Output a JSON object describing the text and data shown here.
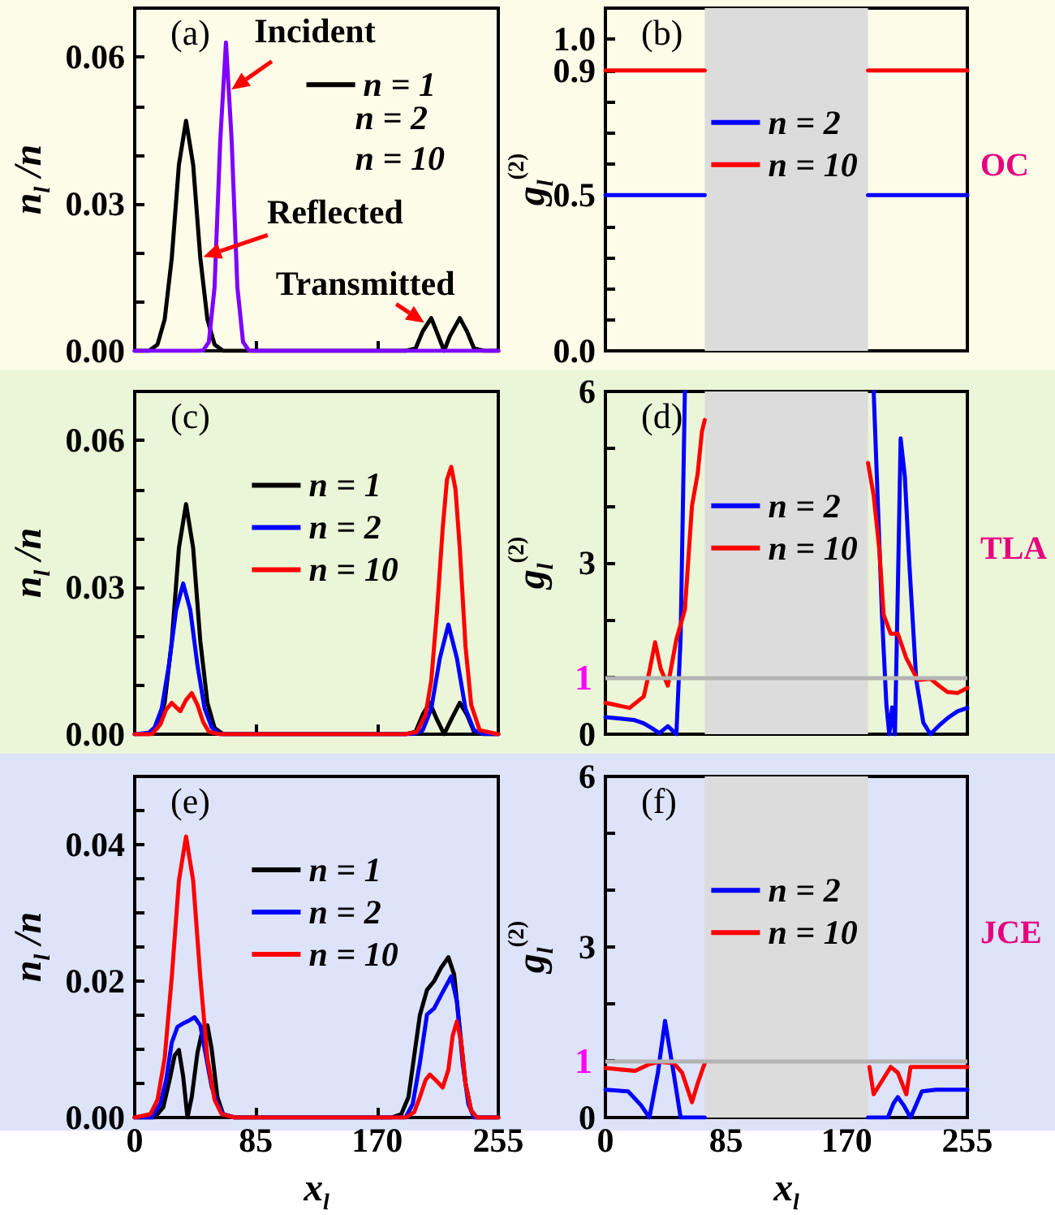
{
  "chart_data": [
    {
      "type": "line",
      "ylabel": "n$_{l}$ /n",
      "xlim": [
        0,
        255
      ],
      "xticks": [
        0,
        85,
        170,
        255
      ],
      "ylim": [
        0,
        0.07
      ],
      "yticks": [
        {
          "value": 0,
          "label": "0.00"
        },
        {
          "value": 0.01,
          "label": null
        },
        {
          "value": 0.02,
          "label": null
        },
        {
          "value": 0.03,
          "label": "0.03"
        },
        {
          "value": 0.04,
          "label": null
        },
        {
          "value": 0.05,
          "label": null
        },
        {
          "value": 0.06,
          "label": "0.06"
        }
      ],
      "tick_labels": "y",
      "legend": "top right",
      "series": [
        {
          "name": "n = 1",
          "color": "#000000",
          "x": [
            0,
            10,
            16,
            21,
            26,
            31,
            36,
            41,
            46,
            51,
            56,
            62,
            100,
            150,
            190,
            197,
            202,
            208,
            213,
            217,
            221,
            228,
            233,
            238,
            245,
            255
          ],
          "values": [
            0,
            0,
            0.0013,
            0.0064,
            0.019,
            0.038,
            0.047,
            0.038,
            0.019,
            0.0064,
            0.0013,
            0,
            0,
            0,
            0,
            0.0005,
            0.004,
            0.0067,
            0.003,
            0,
            0.003,
            0.0067,
            0.004,
            0.0005,
            0,
            0
          ]
        },
        {
          "color": "#7f00ff",
          "x": [
            0,
            44,
            48,
            52,
            56,
            60,
            64,
            68,
            72,
            76,
            80,
            84,
            255
          ],
          "values": [
            0,
            0,
            0.0001,
            0.0018,
            0.013,
            0.043,
            0.063,
            0.043,
            0.013,
            0.0018,
            0.0001,
            0,
            0
          ]
        }
      ],
      "annotations": [
        "(a)",
        {
          "text": "Incident",
          "x": 66,
          "y": 0.053
        },
        {
          "text": "Reflected",
          "x": 46,
          "y": 0.019
        },
        {
          "text": "Transmitted",
          "x": 205,
          "y": 0.0054
        },
        "n = 2",
        "n = 10"
      ]
    },
    {
      "type": "line",
      "ylabel": "g$_{l}$$^{(2)}$",
      "xlim": [
        0,
        255
      ],
      "xticks": [
        0,
        85,
        170,
        255
      ],
      "ylim": [
        0,
        1.1
      ],
      "yticks": [
        {
          "value": 0,
          "label": "0.0"
        },
        {
          "value": 0.1,
          "label": null
        },
        {
          "value": 0.2,
          "label": null
        },
        {
          "value": 0.3,
          "label": null
        },
        {
          "value": 0.4,
          "label": null
        },
        {
          "value": 0.5,
          "label": "0.5"
        },
        {
          "value": 0.6,
          "label": null
        },
        {
          "value": 0.7,
          "label": null
        },
        {
          "value": 0.8,
          "label": null
        },
        {
          "value": 0.9,
          "label": "0.9"
        },
        {
          "value": 1,
          "label": "1.0"
        }
      ],
      "tick_labels": "y",
      "legend": "left",
      "bands": [
        {
          "axis": "x",
          "from": 70,
          "to": 185,
          "color": "#dcdcdc"
        }
      ],
      "series": [
        {
          "name": "n = 2",
          "color": "#0000ff",
          "x": [
            0,
            70,
            128,
            185,
            255
          ],
          "values": [
            0.5,
            0.5,
            null,
            0.5,
            0.5
          ]
        },
        {
          "name": "n = 10",
          "color": "#ff0000",
          "x": [
            0,
            70,
            128,
            185,
            255
          ],
          "values": [
            0.9,
            0.9,
            null,
            0.9,
            0.9
          ]
        }
      ],
      "annotations": [
        "(b)",
        "OC"
      ]
    },
    {
      "type": "line",
      "ylabel": "n$_{l}$ /n",
      "xlim": [
        0,
        255
      ],
      "xticks": [
        0,
        85,
        170,
        255
      ],
      "ylim": [
        0,
        0.07
      ],
      "yticks": [
        {
          "value": 0,
          "label": "0.00"
        },
        {
          "value": 0.01,
          "label": null
        },
        {
          "value": 0.02,
          "label": null
        },
        {
          "value": 0.03,
          "label": "0.03"
        },
        {
          "value": 0.04,
          "label": null
        },
        {
          "value": 0.05,
          "label": null
        },
        {
          "value": 0.06,
          "label": "0.06"
        }
      ],
      "tick_labels": "y",
      "legend": "top",
      "series": [
        {
          "name": "n = 1",
          "color": "#000000",
          "x": [
            0,
            10,
            16,
            21,
            26,
            31,
            36,
            41,
            46,
            51,
            56,
            62,
            100,
            150,
            190,
            197,
            202,
            207,
            212,
            217,
            222,
            228,
            233,
            238,
            245,
            255
          ],
          "values": [
            0,
            0,
            0.0013,
            0.0064,
            0.019,
            0.038,
            0.047,
            0.038,
            0.019,
            0.0064,
            0.0013,
            0,
            0,
            0,
            0,
            0.0005,
            0.004,
            0.0064,
            0.003,
            0,
            0.003,
            0.0064,
            0.004,
            0.0005,
            0,
            0
          ]
        },
        {
          "name": "n = 2",
          "color": "#0000ff",
          "x": [
            0,
            10,
            14,
            19,
            24,
            29,
            34,
            39,
            44,
            49,
            54,
            60,
            100,
            190,
            196,
            202,
            208,
            214,
            220,
            226,
            232,
            238,
            244,
            255
          ],
          "values": [
            0,
            0.0003,
            0.0014,
            0.0053,
            0.0141,
            0.0253,
            0.0308,
            0.0253,
            0.0141,
            0.0053,
            0.0014,
            0,
            0,
            0,
            0.0001,
            0.0008,
            0.0052,
            0.0155,
            0.0224,
            0.0155,
            0.0052,
            0.0008,
            0.0001,
            0
          ]
        },
        {
          "name": "n = 10",
          "color": "#ff0000",
          "x": [
            0,
            12,
            18,
            22,
            26,
            29,
            32,
            36,
            40,
            44,
            48,
            52,
            60,
            100,
            190,
            198,
            204,
            208,
            212,
            216,
            219,
            222,
            225,
            228,
            232,
            236,
            242,
            255
          ],
          "values": [
            0,
            0,
            0.002,
            0.005,
            0.0064,
            0.0055,
            0.0047,
            0.007,
            0.0084,
            0.006,
            0.0025,
            0.0005,
            0,
            0,
            0,
            0.0005,
            0.004,
            0.011,
            0.025,
            0.042,
            0.052,
            0.0546,
            0.05,
            0.038,
            0.018,
            0.006,
            0.0008,
            0
          ]
        }
      ],
      "annotations": [
        "(c)"
      ]
    },
    {
      "type": "line",
      "ylabel": "g$_{l}$$^{(2)}$",
      "xlim": [
        0,
        255
      ],
      "xticks": [
        0,
        85,
        170,
        255
      ],
      "ylim": [
        0,
        6
      ],
      "yticks": [
        0,
        {
          "value": 1,
          "label": null
        },
        {
          "value": 2,
          "label": null
        },
        3,
        {
          "value": 4,
          "label": null
        },
        {
          "value": 5,
          "label": null
        },
        6
      ],
      "tick_labels": "y",
      "legend": "left",
      "bands": [
        {
          "axis": "x",
          "from": 70,
          "to": 185,
          "color": "#dcdcdc"
        }
      ],
      "ref_lines": [
        {
          "axis": "y",
          "value": 1,
          "label": "1",
          "color": "#b4b4b4"
        }
      ],
      "series": [
        {
          "name": "n = 2",
          "color": "#0000ff",
          "x": [
            0,
            20,
            27,
            33,
            38,
            44,
            50,
            53,
            56,
            60,
            189,
            192,
            195,
            198,
            200,
            202,
            204,
            206,
            208,
            211,
            214,
            219,
            224,
            229,
            235,
            241,
            248,
            255
          ],
          "values": [
            0.3,
            0.25,
            0.19,
            0.1,
            0.02,
            0.14,
            0,
            1.7,
            6,
            null,
            6,
            4,
            2,
            0.5,
            0,
            0.47,
            0,
            2.5,
            5.18,
            4.5,
            3.04,
            0.95,
            0.2,
            0,
            0.15,
            0.28,
            0.4,
            0.46
          ]
        },
        {
          "name": "n = 10",
          "color": "#ff0000",
          "x": [
            0,
            17,
            27,
            31,
            35,
            39,
            44,
            50,
            56,
            61,
            65,
            68,
            70,
            128,
            185,
            189,
            193,
            196,
            201,
            206,
            212,
            220,
            229,
            235,
            241,
            248,
            255
          ],
          "values": [
            0.55,
            0.46,
            0.66,
            1.1,
            1.61,
            1.14,
            0.85,
            1.66,
            2.18,
            4.0,
            4.56,
            5.3,
            5.5,
            null,
            4.75,
            4.18,
            3.23,
            2.09,
            1.76,
            1.76,
            1.33,
            0.95,
            0.97,
            0.85,
            0.74,
            0.72,
            0.81
          ]
        }
      ],
      "annotations": [
        "(d)",
        "TLA"
      ]
    },
    {
      "type": "line",
      "xlabel": "x$_{l}$",
      "ylabel": "n$_{l}$ /n",
      "xlim": [
        0,
        255
      ],
      "xticks": [
        0,
        85,
        170,
        255
      ],
      "ylim": [
        0,
        0.05
      ],
      "yticks": [
        {
          "value": 0,
          "label": "0.00"
        },
        {
          "value": 0.005,
          "label": null
        },
        {
          "value": 0.01,
          "label": null
        },
        {
          "value": 0.015,
          "label": null
        },
        {
          "value": 0.02,
          "label": "0.02"
        },
        {
          "value": 0.025,
          "label": null
        },
        {
          "value": 0.03,
          "label": null
        },
        {
          "value": 0.035,
          "label": null
        },
        {
          "value": 0.04,
          "label": "0.04"
        },
        {
          "value": 0.045,
          "label": null
        }
      ],
      "legend": "top",
      "series": [
        {
          "name": "n = 1",
          "color": "#000000",
          "x": [
            0,
            14,
            20,
            25,
            28,
            31,
            34,
            37,
            40,
            44,
            48,
            51,
            54,
            58,
            62,
            70,
            180,
            187,
            192,
            196,
            200,
            205,
            210,
            215,
            220,
            224,
            228,
            232,
            236,
            240,
            255
          ],
          "values": [
            0,
            0,
            0.0015,
            0.006,
            0.0091,
            0.0099,
            0.006,
            0,
            0.003,
            0.0095,
            0.0133,
            0.0135,
            0.01,
            0.003,
            0.0005,
            0,
            0,
            0.0005,
            0.003,
            0.009,
            0.015,
            0.0187,
            0.02,
            0.022,
            0.0235,
            0.021,
            0.013,
            0.005,
            0.001,
            0,
            0
          ]
        },
        {
          "name": "n = 2",
          "color": "#0000ff",
          "x": [
            0,
            12,
            18,
            22,
            26,
            30,
            34,
            38,
            42,
            46,
            50,
            54,
            58,
            62,
            70,
            180,
            190,
            195,
            200,
            205,
            210,
            215,
            222,
            226,
            230,
            234,
            238,
            255
          ],
          "values": [
            0,
            0,
            0.002,
            0.0055,
            0.011,
            0.0133,
            0.0138,
            0.0142,
            0.0147,
            0.0135,
            0.009,
            0.0045,
            0.002,
            0.0005,
            0,
            0,
            0,
            0.002,
            0.008,
            0.0151,
            0.016,
            0.018,
            0.0207,
            0.017,
            0.008,
            0.002,
            0,
            0
          ]
        },
        {
          "name": "n = 10",
          "color": "#ff0000",
          "x": [
            0,
            11,
            16,
            21,
            26,
            31,
            36,
            41,
            46,
            51,
            56,
            61,
            70,
            180,
            190,
            196,
            200,
            204,
            207,
            211,
            216,
            220,
            223,
            226,
            229,
            232,
            236,
            240,
            255
          ],
          "values": [
            0,
            0.0005,
            0.0026,
            0.0087,
            0.0206,
            0.0347,
            0.0412,
            0.0347,
            0.0206,
            0.0087,
            0.0026,
            0.0005,
            0,
            0,
            0,
            0.0008,
            0.003,
            0.0055,
            0.0063,
            0.0055,
            0.0044,
            0.007,
            0.012,
            0.0141,
            0.011,
            0.005,
            0.001,
            0,
            0
          ]
        }
      ],
      "annotations": [
        "(e)"
      ]
    },
    {
      "type": "line",
      "xlabel": "x$_{l}$",
      "ylabel": "g$_{l}$$^{(2)}$",
      "xlim": [
        0,
        255
      ],
      "xticks": [
        0,
        85,
        170,
        255
      ],
      "ylim": [
        0,
        6
      ],
      "yticks": [
        0,
        {
          "value": 1,
          "label": null
        },
        {
          "value": 2,
          "label": null
        },
        3,
        {
          "value": 4,
          "label": null
        },
        {
          "value": 5,
          "label": null
        },
        6
      ],
      "legend": "left",
      "bands": [
        {
          "axis": "x",
          "from": 70,
          "to": 185,
          "color": "#dcdcdc"
        }
      ],
      "ref_lines": [
        {
          "axis": "y",
          "value": 1,
          "label": "1",
          "color": "#b4b4b4"
        }
      ],
      "series": [
        {
          "name": "n = 2",
          "color": "#0000ff",
          "x": [
            0,
            16,
            25,
            31,
            37,
            42,
            48,
            53,
            60,
            70,
            128,
            185,
            199,
            203,
            206,
            210,
            215,
            223,
            233,
            255
          ],
          "values": [
            0.49,
            0.46,
            0.22,
            0,
            0.79,
            1.7,
            0.79,
            0,
            0,
            0,
            null,
            0,
            0,
            0.25,
            0.36,
            0.22,
            0,
            0.46,
            0.49,
            0.49
          ]
        },
        {
          "name": "n = 10",
          "color": "#ff0000",
          "x": [
            0,
            21,
            31,
            38,
            48,
            54,
            61,
            65,
            69,
            70,
            128,
            186,
            189,
            195,
            201,
            206,
            212,
            215,
            222,
            255
          ],
          "values": [
            0.87,
            0.82,
            0.94,
            0.98,
            0.96,
            0.79,
            0.27,
            0.6,
            0.89,
            0.95,
            null,
            0.89,
            0.41,
            0.65,
            0.89,
            0.79,
            0.41,
            0.89,
            0.89,
            0.89
          ]
        }
      ],
      "annotations": [
        "(f)",
        "JCE"
      ]
    }
  ]
}
